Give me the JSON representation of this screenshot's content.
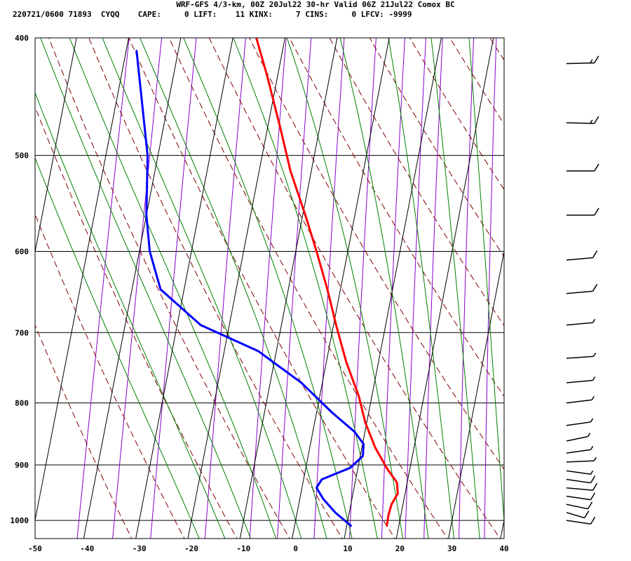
{
  "header": {
    "line1": "WRF-GFS 4/3-km, 00Z 20Jul22 30-hr Valid 06Z 21Jul22 Comox BC",
    "line2": "220721/0600 71893  CYQQ    CAPE:     0 LIFT:    11 KINX:     7 CINS:     0 LFCV: -9999"
  },
  "chart_data": {
    "type": "line",
    "title": "",
    "xlabel": "",
    "ylabel": "",
    "xlim": [
      -50,
      40
    ],
    "ylim_pressure": [
      1035,
      400
    ],
    "skew_degC_per_log_p": 4.0,
    "x_tick_labels": [
      "-50",
      "-40",
      "-30",
      "-20",
      "-10",
      "0",
      "10",
      "20",
      "30",
      "40"
    ],
    "x_ticks": [
      -50,
      -40,
      -30,
      -20,
      -10,
      0,
      10,
      20,
      30,
      40
    ],
    "y_tick_labels": [
      "400",
      "500",
      "600",
      "700",
      "800",
      "900",
      "1000"
    ],
    "y_ticks": [
      400,
      500,
      600,
      700,
      800,
      900,
      1000
    ],
    "grid": true,
    "colors": {
      "temperature": "#ff0000",
      "dewpoint": "#0000ff",
      "isotherm": "#000000",
      "dry_adiabat": "#800000",
      "moist_adiabat": "#008000",
      "mixing_ratio": "#8800cc",
      "wind_barb": "#000000"
    },
    "series": [
      {
        "id": "temperature",
        "points": [
          [
            17.7,
            1010
          ],
          [
            17.6,
            990
          ],
          [
            17.8,
            970
          ],
          [
            18.6,
            950
          ],
          [
            18.0,
            930
          ],
          [
            15.5,
            905
          ],
          [
            12.5,
            870
          ],
          [
            9.7,
            830
          ],
          [
            7.5,
            790
          ],
          [
            3.8,
            740
          ],
          [
            0.5,
            690
          ],
          [
            -2.5,
            645
          ],
          [
            -6.0,
            600
          ],
          [
            -9.5,
            560
          ],
          [
            -14.0,
            515
          ],
          [
            -17.5,
            475
          ],
          [
            -22.0,
            430
          ],
          [
            -25.5,
            400
          ]
        ]
      },
      {
        "id": "dewpoint",
        "points": [
          [
            10.8,
            1010
          ],
          [
            7.3,
            985
          ],
          [
            4.5,
            960
          ],
          [
            2.8,
            940
          ],
          [
            3.5,
            925
          ],
          [
            8.5,
            905
          ],
          [
            10.5,
            885
          ],
          [
            10.2,
            865
          ],
          [
            8.0,
            845
          ],
          [
            3.0,
            815
          ],
          [
            -4.0,
            770
          ],
          [
            -13.5,
            725
          ],
          [
            -25.5,
            690
          ],
          [
            -34.5,
            645
          ],
          [
            -38.0,
            600
          ],
          [
            -40.0,
            560
          ],
          [
            -42.0,
            500
          ],
          [
            -48.0,
            410
          ]
        ]
      }
    ],
    "isotherms_degC": [
      -150,
      -140,
      -130,
      -120,
      -110,
      -100,
      -90,
      -80,
      -70,
      -60,
      -50,
      -40,
      -30,
      -20,
      -10,
      0,
      10,
      20,
      30,
      40
    ],
    "dry_adiabats_theta_K": [
      240,
      250,
      260,
      270,
      280,
      290,
      300,
      310,
      320,
      330,
      340,
      350,
      360,
      370,
      380,
      390,
      400,
      410,
      420,
      430,
      440,
      450,
      460,
      470,
      480
    ],
    "moist_adiabats_thetaw_degC": [
      -20,
      -15,
      -10,
      -5,
      0,
      5,
      10,
      15,
      20,
      25,
      30,
      35,
      40
    ],
    "mixing_ratio_gkg": [
      0.1,
      0.2,
      0.4,
      1,
      2,
      3,
      5,
      8,
      12,
      16,
      20,
      30,
      40
    ],
    "wind_profile_note": "speed_kt, dir_deg",
    "winds": [
      {
        "p": 1000,
        "speed_kt": 10,
        "dir_deg": 300
      },
      {
        "p": 985,
        "speed_kt": 10,
        "dir_deg": 320
      },
      {
        "p": 970,
        "speed_kt": 10,
        "dir_deg": 310
      },
      {
        "p": 955,
        "speed_kt": 10,
        "dir_deg": 300
      },
      {
        "p": 940,
        "speed_kt": 10,
        "dir_deg": 290
      },
      {
        "p": 925,
        "speed_kt": 10,
        "dir_deg": 300
      },
      {
        "p": 910,
        "speed_kt": 5,
        "dir_deg": 300
      },
      {
        "p": 895,
        "speed_kt": 5,
        "dir_deg": 260
      },
      {
        "p": 880,
        "speed_kt": 5,
        "dir_deg": 240
      },
      {
        "p": 860,
        "speed_kt": 5,
        "dir_deg": 230
      },
      {
        "p": 835,
        "speed_kt": 5,
        "dir_deg": 240
      },
      {
        "p": 800,
        "speed_kt": 5,
        "dir_deg": 245
      },
      {
        "p": 770,
        "speed_kt": 5,
        "dir_deg": 250
      },
      {
        "p": 735,
        "speed_kt": 5,
        "dir_deg": 255
      },
      {
        "p": 690,
        "speed_kt": 5,
        "dir_deg": 250
      },
      {
        "p": 650,
        "speed_kt": 10,
        "dir_deg": 250
      },
      {
        "p": 610,
        "speed_kt": 10,
        "dir_deg": 250
      },
      {
        "p": 560,
        "speed_kt": 10,
        "dir_deg": 270
      },
      {
        "p": 515,
        "speed_kt": 10,
        "dir_deg": 270
      },
      {
        "p": 470,
        "speed_kt": 15,
        "dir_deg": 275
      },
      {
        "p": 420,
        "speed_kt": 15,
        "dir_deg": 265
      }
    ]
  }
}
